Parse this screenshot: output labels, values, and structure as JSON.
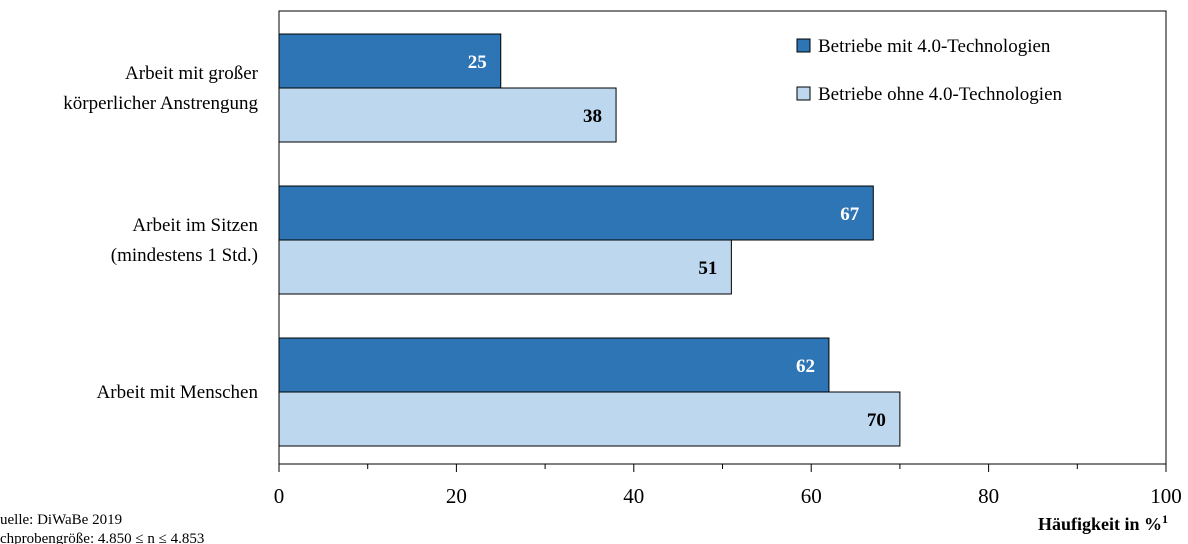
{
  "chart_data": {
    "type": "bar",
    "orientation": "horizontal",
    "categories": [
      [
        "Arbeit mit großer",
        "körperlicher Anstrengung"
      ],
      [
        "Arbeit im Sitzen",
        "(mindestens 1 Std.)"
      ],
      [
        "Arbeit mit Menschen"
      ]
    ],
    "series": [
      {
        "name": "Betriebe mit 4.0-Technologien",
        "values": [
          25,
          67,
          62
        ],
        "color": "#2E75B6",
        "label_color": "#ffffff"
      },
      {
        "name": "Betriebe ohne 4.0-Technologien",
        "values": [
          38,
          51,
          70
        ],
        "color": "#BDD7EE",
        "label_color": "#000000"
      }
    ],
    "xlim": [
      0,
      100
    ],
    "xticks": [
      0,
      20,
      40,
      60,
      80,
      100
    ],
    "xlabel": "Häufigkeit in %",
    "xlabel_superscript": "1",
    "legend_position": "top-right",
    "grid": false
  },
  "source_lines": [
    "uelle: DiWaBe 2019",
    "chprobengröße: 4.850 ≤ n ≤ 4.853"
  ]
}
